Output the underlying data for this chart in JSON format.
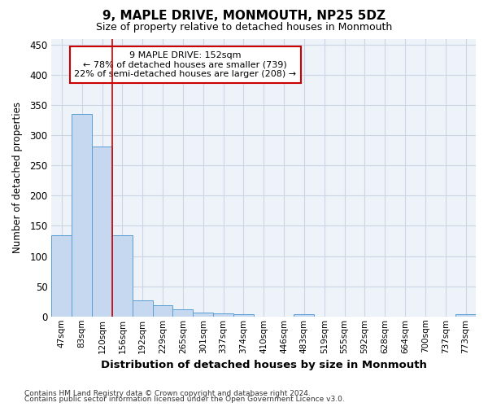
{
  "title": "9, MAPLE DRIVE, MONMOUTH, NP25 5DZ",
  "subtitle": "Size of property relative to detached houses in Monmouth",
  "xlabel": "Distribution of detached houses by size in Monmouth",
  "ylabel": "Number of detached properties",
  "categories": [
    "47sqm",
    "83sqm",
    "120sqm",
    "156sqm",
    "192sqm",
    "229sqm",
    "265sqm",
    "301sqm",
    "337sqm",
    "374sqm",
    "410sqm",
    "446sqm",
    "483sqm",
    "519sqm",
    "555sqm",
    "592sqm",
    "628sqm",
    "664sqm",
    "700sqm",
    "737sqm",
    "773sqm"
  ],
  "values": [
    135,
    335,
    282,
    134,
    27,
    18,
    12,
    7,
    5,
    4,
    0,
    0,
    4,
    0,
    0,
    0,
    0,
    0,
    0,
    0,
    4
  ],
  "bar_color": "#c5d8f0",
  "bar_edge_color": "#5a9fd4",
  "grid_color": "#ccd5e3",
  "background_color": "#eef2f9",
  "vline_x": 2.5,
  "vline_color": "#cc0000",
  "annotation_line1": "9 MAPLE DRIVE: 152sqm",
  "annotation_line2": "← 78% of detached houses are smaller (739)",
  "annotation_line3": "22% of semi-detached houses are larger (208) →",
  "annotation_box_color": "#ffffff",
  "annotation_box_edge": "#cc0000",
  "ylim": [
    0,
    460
  ],
  "yticks": [
    0,
    50,
    100,
    150,
    200,
    250,
    300,
    350,
    400,
    450
  ],
  "footer1": "Contains HM Land Registry data © Crown copyright and database right 2024.",
  "footer2": "Contains public sector information licensed under the Open Government Licence v3.0."
}
